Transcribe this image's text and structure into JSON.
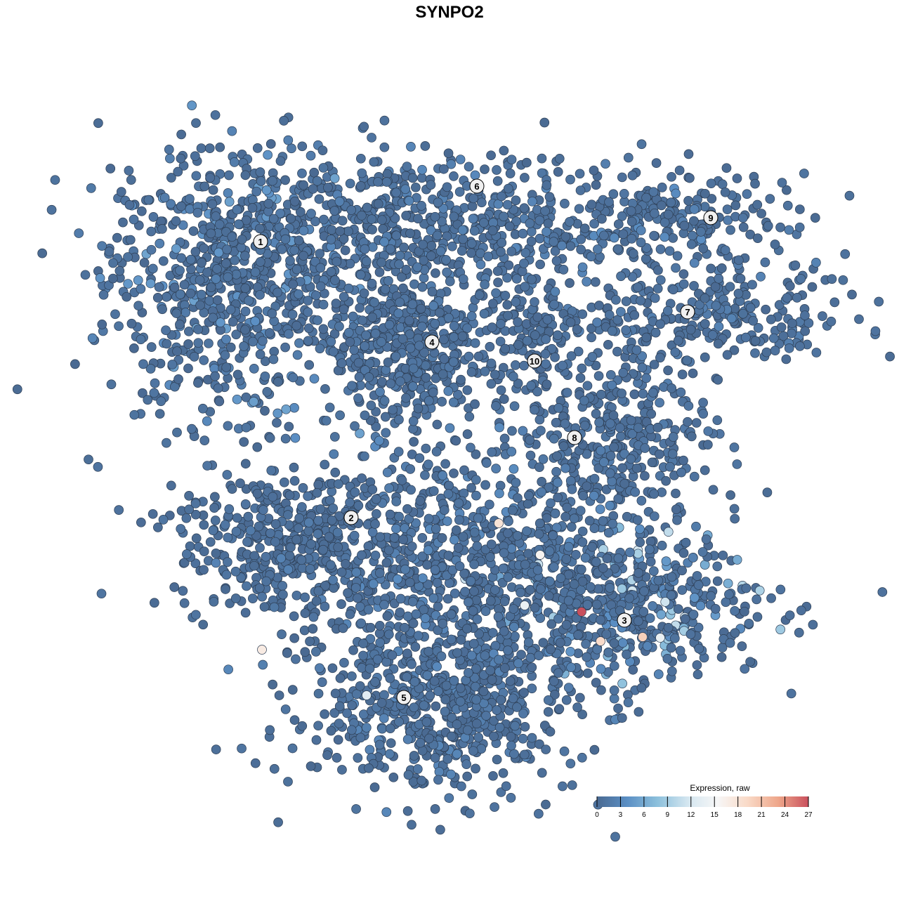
{
  "chart_data": {
    "type": "scatter",
    "title": "SYNPO2",
    "xlabel": "",
    "ylabel": "",
    "axes_visible": false,
    "grid": false,
    "legend": {
      "title": "Expression, raw",
      "placement": "bottom-right",
      "ticks": [
        "0",
        "3",
        "6",
        "9",
        "12",
        "15",
        "18",
        "21",
        "24",
        "27"
      ],
      "range": [
        0,
        27
      ],
      "colors": [
        "#4a6a92",
        "#5b8fc4",
        "#8cc0dc",
        "#d4e6f0",
        "#f7f7f7",
        "#f9d9c6",
        "#eea68a",
        "#c9505d"
      ]
    },
    "clusters": [
      {
        "label": "1",
        "center": [
          -26.9,
          29.6
        ],
        "mass": [
          -31,
          24
        ],
        "spread": [
          9,
          10
        ],
        "n": 700,
        "mean_expr": 2.5
      },
      {
        "label": "6",
        "center": [
          3.9,
          37.5
        ],
        "mass": [
          -2,
          32
        ],
        "spread": [
          18,
          5
        ],
        "n": 650,
        "mean_expr": 1.5
      },
      {
        "label": "4",
        "center": [
          -2.5,
          15.3
        ],
        "mass": [
          -6,
          15
        ],
        "spread": [
          5.5,
          5.5
        ],
        "n": 450,
        "mean_expr": 0.8
      },
      {
        "label": "10",
        "center": [
          12.1,
          12.6
        ],
        "mass": [
          12,
          16
        ],
        "spread": [
          4,
          4
        ],
        "n": 120,
        "mean_expr": 0.6
      },
      {
        "label": "9",
        "center": [
          37.2,
          33.0
        ],
        "mass": [
          34,
          33
        ],
        "spread": [
          7,
          3
        ],
        "n": 150,
        "mean_expr": 1.8
      },
      {
        "label": "7",
        "center": [
          33.9,
          19.6
        ],
        "mass": [
          34,
          19
        ],
        "spread": [
          12,
          4
        ],
        "n": 300,
        "mean_expr": 1.2
      },
      {
        "label": "8",
        "center": [
          17.8,
          1.7
        ],
        "mass": [
          24,
          2
        ],
        "spread": [
          7,
          6
        ],
        "n": 330,
        "mean_expr": 0.9
      },
      {
        "label": "2",
        "center": [
          -14.0,
          -9.7
        ],
        "mass": [
          -23,
          -13
        ],
        "spread": [
          8,
          5
        ],
        "n": 400,
        "mean_expr": 0.6
      },
      {
        "label": "3",
        "center": [
          24.9,
          -24.3
        ],
        "mass": [
          26,
          -22
        ],
        "spread": [
          10,
          5
        ],
        "n": 420,
        "mean_expr": 5.5
      },
      {
        "label": "5",
        "center": [
          -6.5,
          -35.3
        ],
        "mass": [
          -2,
          -37
        ],
        "spread": [
          10,
          6
        ],
        "n": 550,
        "mean_expr": 1.4
      },
      {
        "label": "",
        "center": [
          0,
          0
        ],
        "mass": [
          2,
          -18
        ],
        "spread": [
          12,
          10
        ],
        "n": 900,
        "mean_expr": 1.6
      }
    ],
    "highlighted_points": [
      {
        "x": 18.8,
        "y": -23.1,
        "value": 27
      },
      {
        "x": 7.0,
        "y": -10.5,
        "value": 18
      },
      {
        "x": 12.9,
        "y": -15.0,
        "value": 16
      },
      {
        "x": 21.5,
        "y": -27.3,
        "value": 19
      },
      {
        "x": 27.5,
        "y": -26.7,
        "value": 20
      },
      {
        "x": -26.7,
        "y": -28.5,
        "value": 17
      },
      {
        "x": -11.8,
        "y": -35.0,
        "value": 13
      },
      {
        "x": 10.7,
        "y": -22.2,
        "value": 14
      },
      {
        "x": 30.0,
        "y": -26.8,
        "value": 14
      }
    ]
  }
}
